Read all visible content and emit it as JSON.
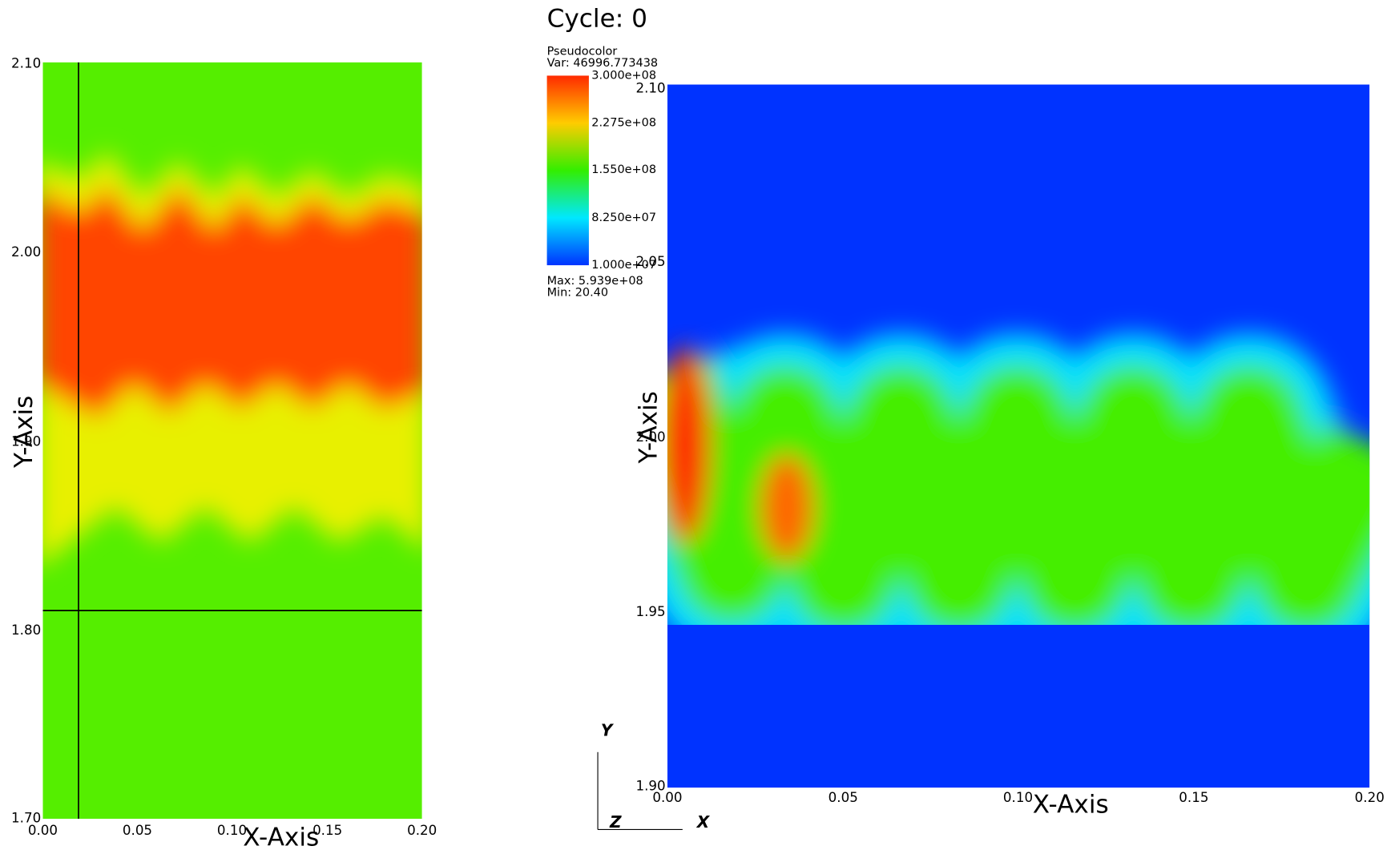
{
  "left_view": {
    "y_ticks": [
      "2.10",
      "2.00",
      "1.90",
      "1.80",
      "1.70"
    ],
    "x_ticks": [
      "0.00",
      "0.05",
      "0.10",
      "0.15",
      "0.20"
    ],
    "x_title": "X-Axis",
    "y_title": "Y-Axis"
  },
  "right_view": {
    "title": "Cycle: 0",
    "legend": {
      "plot": "Pseudocolor",
      "var": "Var: 46996.773438",
      "labels": [
        "3.000e+08",
        "2.275e+08",
        "1.550e+08",
        "8.250e+07",
        "1.000e+07"
      ],
      "max": "Max: 5.939e+08",
      "min": "Min: 20.40"
    },
    "y_ticks": [
      "2.10",
      "2.05",
      "2.00",
      "1.95",
      "1.90"
    ],
    "x_ticks": [
      "0.00",
      "0.05",
      "0.10",
      "0.15",
      "0.20"
    ],
    "x_title": "X-Axis",
    "y_title": "Y-Axis",
    "triad": [
      "X",
      "Y",
      "Z"
    ]
  }
}
